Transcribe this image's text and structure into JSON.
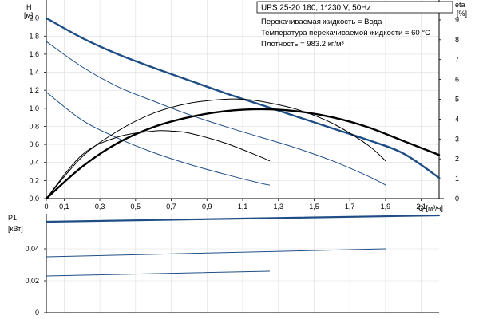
{
  "title": "UPS 25-20 180, 1*230 V, 50Hz",
  "info": [
    "Перекачиваемая жидкость = Вода",
    "Температура перекачиваемой жидкости = 60 °C",
    "Плотность = 983.2 кг/м³"
  ],
  "colors": {
    "head": "#1f4e86",
    "eta": "#000000",
    "power": "#1f4e86",
    "grid": "#dddddd",
    "axis": "#000000"
  },
  "chart_data": [
    {
      "type": "line",
      "id": "head-eta",
      "x_axis": {
        "label": "Q [м³/ч]",
        "range": [
          0,
          2.2
        ],
        "ticks": [
          0,
          0.1,
          0.3,
          0.5,
          0.7,
          0.9,
          1.1,
          1.3,
          1.5,
          1.7,
          1.9,
          2.1
        ],
        "tick_labels": [
          "0",
          "0,1",
          "0,3",
          "0,5",
          "0,7",
          "0,9",
          "1,1",
          "1,3",
          "1,5",
          "1,7",
          "1,9",
          "2,1"
        ]
      },
      "y_axis_left": {
        "label": "H",
        "unit": "[м]",
        "range": [
          0,
          2.2
        ],
        "ticks": [
          0,
          0.2,
          0.4,
          0.6,
          0.8,
          1.0,
          1.2,
          1.4,
          1.6,
          1.8,
          2.0
        ],
        "tick_labels": [
          "0.0",
          "0.2",
          "0.4",
          "0.6",
          "0.8",
          "1.0",
          "1.2",
          "1.4",
          "1.6",
          "1.8",
          "2.0"
        ]
      },
      "y_axis_right": {
        "label": "eta",
        "unit": "[%]",
        "range": [
          0,
          10
        ],
        "ticks": [
          0,
          1,
          2,
          3,
          4,
          5,
          6,
          7,
          8,
          9
        ],
        "tick_labels": [
          "0",
          "1",
          "2",
          "3",
          "4",
          "5",
          "6",
          "7",
          "8",
          "9"
        ]
      },
      "grid": true,
      "series": [
        {
          "kind": "head",
          "axis": "left",
          "emphasis": "bold",
          "x": [
            0,
            0.2,
            0.4,
            0.6,
            0.8,
            1.0,
            1.2,
            1.4,
            1.6,
            1.8,
            2.0,
            2.2
          ],
          "y": [
            2.0,
            1.78,
            1.6,
            1.45,
            1.31,
            1.17,
            1.04,
            0.91,
            0.78,
            0.65,
            0.5,
            0.23
          ]
        },
        {
          "kind": "head",
          "axis": "left",
          "emphasis": "normal",
          "x": [
            0,
            0.2,
            0.4,
            0.6,
            0.8,
            1.0,
            1.2,
            1.4,
            1.6,
            1.8,
            1.9
          ],
          "y": [
            1.74,
            1.46,
            1.24,
            1.08,
            0.93,
            0.8,
            0.68,
            0.56,
            0.42,
            0.25,
            0.15
          ]
        },
        {
          "kind": "head",
          "axis": "left",
          "emphasis": "normal",
          "x": [
            0,
            0.2,
            0.4,
            0.6,
            0.8,
            1.0,
            1.2,
            1.25
          ],
          "y": [
            1.18,
            0.87,
            0.67,
            0.51,
            0.38,
            0.27,
            0.17,
            0.15
          ]
        },
        {
          "kind": "eta",
          "axis": "right",
          "emphasis": "bold",
          "x": [
            0,
            0.2,
            0.4,
            0.6,
            0.8,
            1.0,
            1.2,
            1.4,
            1.6,
            1.8,
            2.0,
            2.2
          ],
          "y": [
            0,
            1.6,
            2.8,
            3.6,
            4.1,
            4.4,
            4.5,
            4.4,
            4.1,
            3.6,
            2.9,
            2.2
          ]
        },
        {
          "kind": "eta",
          "axis": "right",
          "emphasis": "normal",
          "x": [
            0,
            0.2,
            0.4,
            0.6,
            0.8,
            1.0,
            1.1,
            1.2,
            1.4,
            1.6,
            1.8,
            1.9
          ],
          "y": [
            0,
            2.1,
            3.4,
            4.3,
            4.8,
            5.0,
            5.0,
            4.9,
            4.5,
            3.8,
            2.7,
            1.9
          ]
        },
        {
          "kind": "eta",
          "axis": "right",
          "emphasis": "normal",
          "x": [
            0,
            0.2,
            0.4,
            0.6,
            0.7,
            0.8,
            1.0,
            1.2,
            1.25
          ],
          "y": [
            0,
            2.2,
            3.1,
            3.4,
            3.4,
            3.3,
            2.8,
            2.1,
            1.9
          ]
        }
      ]
    },
    {
      "type": "line",
      "id": "power",
      "x_range": [
        0,
        2.2
      ],
      "y_axis": {
        "label": "P1",
        "unit": "[кВт]",
        "range": [
          0,
          0.062
        ],
        "ticks": [
          0,
          0.02,
          0.04
        ],
        "tick_labels": [
          "0",
          "0,02",
          "0,04"
        ]
      },
      "grid": true,
      "series": [
        {
          "x": [
            0,
            2.2
          ],
          "y": [
            0.057,
            0.061
          ],
          "emphasis": "bold"
        },
        {
          "x": [
            0,
            1.9
          ],
          "y": [
            0.035,
            0.04
          ],
          "emphasis": "normal"
        },
        {
          "x": [
            0,
            1.25
          ],
          "y": [
            0.023,
            0.026
          ],
          "emphasis": "normal"
        }
      ]
    }
  ]
}
